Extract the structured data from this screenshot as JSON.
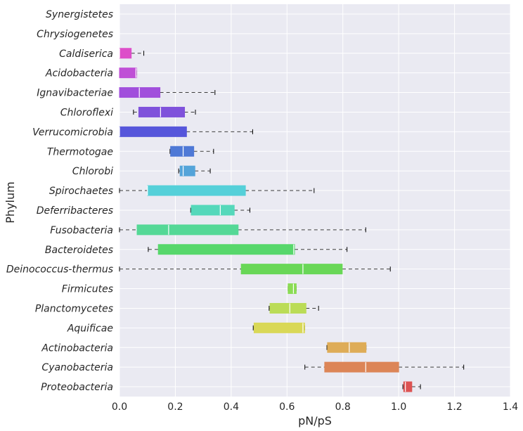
{
  "chart_data": {
    "type": "boxplot",
    "orientation": "horizontal",
    "xlabel": "pN/pS",
    "ylabel": "Phylum",
    "xlim": [
      0.0,
      1.4
    ],
    "xticks": [
      "0.0",
      "0.2",
      "0.4",
      "0.6",
      "0.8",
      "1.0",
      "1.2",
      "1.4"
    ],
    "grid": true,
    "categories": [
      "Synergistetes",
      "Chrysiogenetes",
      "Caldiserica",
      "Acidobacteria",
      "Ignavibacteriae",
      "Chloroflexi",
      "Verrucomicrobia",
      "Thermotogae",
      "Chlorobi",
      "Spirochaetes",
      "Deferribacteres",
      "Fusobacteria",
      "Bacteroidetes",
      "Deinococcus-thermus",
      "Firmicutes",
      "Planctomycetes",
      "Aquificae",
      "Actinobacteria",
      "Cyanobacteria",
      "Proteobacteria"
    ],
    "boxes": [
      {
        "whislo": 0.0,
        "q1": 0.0,
        "med": 0.0,
        "q3": 0.0,
        "whishi": 0.0,
        "color": "#e0509b"
      },
      {
        "whislo": 0.0,
        "q1": 0.0,
        "med": 0.0,
        "q3": 0.0,
        "whishi": 0.0,
        "color": "#d94ec5"
      },
      {
        "whislo": 0.0,
        "q1": 0.0,
        "med": 0.0,
        "q3": 0.042,
        "whishi": 0.087,
        "color": "#dd4ec9"
      },
      {
        "whislo": 0.0,
        "q1": 0.0,
        "med": 0.059,
        "q3": 0.061,
        "whishi": 0.061,
        "color": "#bf4fd6"
      },
      {
        "whislo": 0.0,
        "q1": 0.0,
        "med": 0.071,
        "q3": 0.145,
        "whishi": 0.342,
        "color": "#a14fdc"
      },
      {
        "whislo": 0.05,
        "q1": 0.069,
        "med": 0.147,
        "q3": 0.233,
        "whishi": 0.272,
        "color": "#7f52db"
      },
      {
        "whislo": 0.0,
        "q1": 0.0,
        "med": 0.0,
        "q3": 0.24,
        "whishi": 0.477,
        "color": "#5656db"
      },
      {
        "whislo": 0.181,
        "q1": 0.183,
        "med": 0.228,
        "q3": 0.266,
        "whishi": 0.337,
        "color": "#4f79d6"
      },
      {
        "whislo": 0.212,
        "q1": 0.217,
        "med": 0.228,
        "q3": 0.27,
        "whishi": 0.325,
        "color": "#54a4d9"
      },
      {
        "whislo": 0.0,
        "q1": 0.1,
        "med": 0.1,
        "q3": 0.451,
        "whishi": 0.697,
        "color": "#55d0d9"
      },
      {
        "whislo": 0.255,
        "q1": 0.257,
        "med": 0.361,
        "q3": 0.411,
        "whishi": 0.467,
        "color": "#55d8ba"
      },
      {
        "whislo": 0.0,
        "q1": 0.063,
        "med": 0.176,
        "q3": 0.425,
        "whishi": 0.882,
        "color": "#55d896"
      },
      {
        "whislo": 0.103,
        "q1": 0.139,
        "med": 0.624,
        "q3": 0.627,
        "whishi": 0.815,
        "color": "#57d76b"
      },
      {
        "whislo": 0.0,
        "q1": 0.436,
        "med": 0.657,
        "q3": 0.798,
        "whishi": 0.97,
        "color": "#69d757"
      },
      {
        "whislo": 0.604,
        "q1": 0.604,
        "med": 0.623,
        "q3": 0.633,
        "whishi": 0.633,
        "color": "#8bdc55"
      },
      {
        "whislo": 0.536,
        "q1": 0.539,
        "med": 0.61,
        "q3": 0.668,
        "whishi": 0.713,
        "color": "#bbdc57"
      },
      {
        "whislo": 0.479,
        "q1": 0.482,
        "med": 0.657,
        "q3": 0.663,
        "whishi": 0.663,
        "color": "#d9d857"
      },
      {
        "whislo": 0.743,
        "q1": 0.745,
        "med": 0.823,
        "q3": 0.883,
        "whishi": 0.883,
        "color": "#deac57"
      },
      {
        "whislo": 0.664,
        "q1": 0.735,
        "med": 0.882,
        "q3": 1.0,
        "whishi": 1.233,
        "color": "#dc8557"
      },
      {
        "whislo": 1.015,
        "q1": 1.018,
        "med": 1.024,
        "q3": 1.047,
        "whishi": 1.078,
        "color": "#dc5353"
      }
    ]
  }
}
